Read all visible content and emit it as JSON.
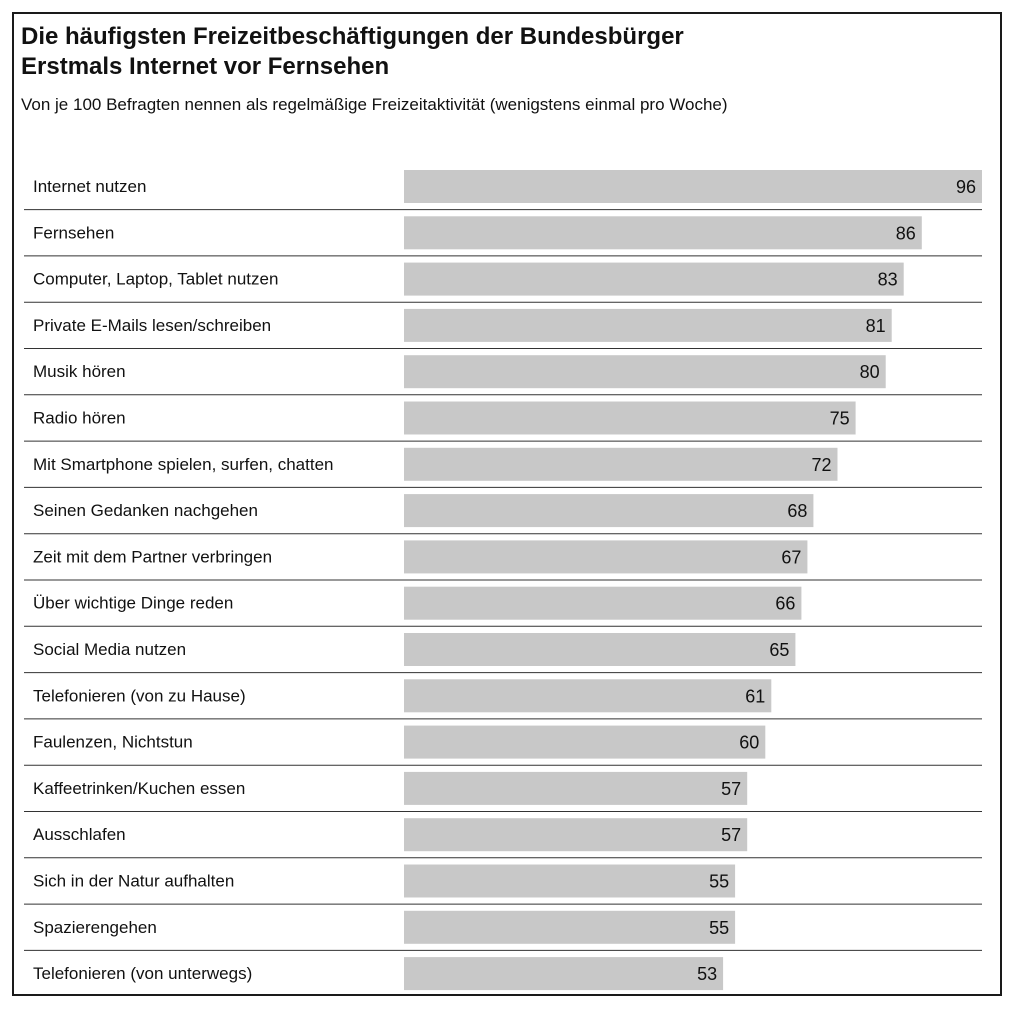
{
  "chart_data": {
    "type": "bar",
    "orientation": "horizontal",
    "title": "Die häufigsten Freizeitbeschäftigungen der Bundesbürger",
    "subtitle": "Erstmals Internet vor Fernsehen",
    "note": "Von je 100 Befragten nennen als regelmäßige Freizeitaktivität (wenigstens einmal pro Woche)",
    "xlim": [
      0,
      100
    ],
    "grid": false,
    "legend": "none",
    "bar_color": "#c8c8c8",
    "separator_color": "#333333",
    "categories": [
      "Internet nutzen",
      "Fernsehen",
      "Computer, Laptop, Tablet nutzen",
      "Private E-Mails lesen/schreiben",
      "Musik hören",
      "Radio hören",
      "Mit Smartphone spielen, surfen, chatten",
      "Seinen Gedanken nachgehen",
      "Zeit mit dem Partner verbringen",
      "Über wichtige Dinge reden",
      "Social Media nutzen",
      "Telefonieren (von zu Hause)",
      "Faulenzen, Nichtstun",
      "Kaffeetrinken/Kuchen essen",
      "Ausschlafen",
      "Sich in der Natur aufhalten",
      "Spazierengehen",
      "Telefonieren (von unterwegs)"
    ],
    "values": [
      96,
      86,
      83,
      81,
      80,
      75,
      72,
      68,
      67,
      66,
      65,
      61,
      60,
      57,
      57,
      55,
      55,
      53
    ]
  }
}
